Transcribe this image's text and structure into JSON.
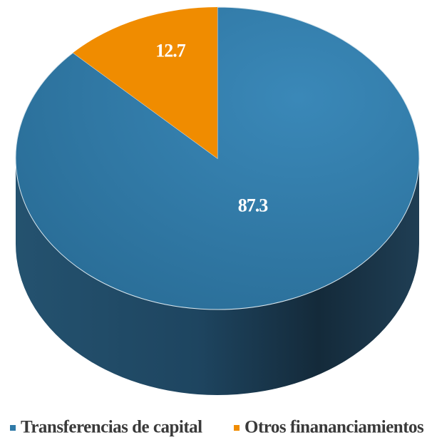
{
  "chart_data": {
    "type": "pie",
    "categories": [
      "Transferencias de capital",
      "Otros finananciamientos"
    ],
    "values": [
      87.3,
      12.7
    ],
    "colors": [
      "#2f7aa8",
      "#f08c00"
    ],
    "legend": "bottom",
    "start": "top",
    "direction": [
      "clockwise",
      "counterclockwise"
    ]
  }
}
